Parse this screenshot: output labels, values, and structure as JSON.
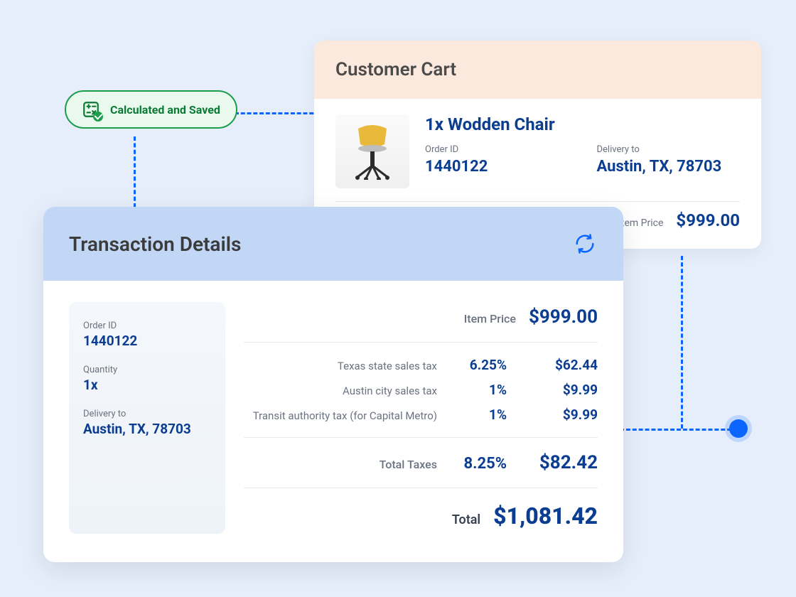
{
  "colors": {
    "page_bg": "#e6eefc",
    "primary_text": "#0b3d91",
    "muted_text": "#6b7280",
    "connector": "#0a66ff",
    "pill_bg": "#e9f9ee",
    "pill_border": "#1d9d4c",
    "pill_text": "#0a7a34",
    "cart_header_bg": "#fbe9de",
    "txn_header_bg": "#c2d7f6",
    "divider": "#e5eaf0"
  },
  "status": {
    "label": "Calculated and Saved",
    "icon": "calculator-icon"
  },
  "cart": {
    "title": "Customer Cart",
    "product_title": "1x Wodden Chair",
    "order_id_label": "Order ID",
    "order_id": "1440122",
    "delivery_label": "Delivery to",
    "delivery": "Austin, TX, 78703",
    "item_price_label": "Item Price",
    "item_price": "$999.00"
  },
  "txn": {
    "title": "Transaction Details",
    "side": {
      "order_id_label": "Order ID",
      "order_id": "1440122",
      "quantity_label": "Quantity",
      "quantity": "1x",
      "delivery_label": "Delivery to",
      "delivery": "Austin, TX, 78703"
    },
    "item_price_label": "Item Price",
    "item_price": "$999.00",
    "taxes": [
      {
        "label": "Texas state sales tax",
        "rate": "6.25%",
        "amount": "$62.44"
      },
      {
        "label": "Austin city sales tax",
        "rate": "1%",
        "amount": "$9.99"
      },
      {
        "label": "Transit authority tax (for Capital Metro)",
        "rate": "1%",
        "amount": "$9.99"
      }
    ],
    "total_taxes_label": "Total Taxes",
    "total_taxes_rate": "8.25%",
    "total_taxes_amount": "$82.42",
    "total_label": "Total",
    "total_amount": "$1,081.42"
  }
}
